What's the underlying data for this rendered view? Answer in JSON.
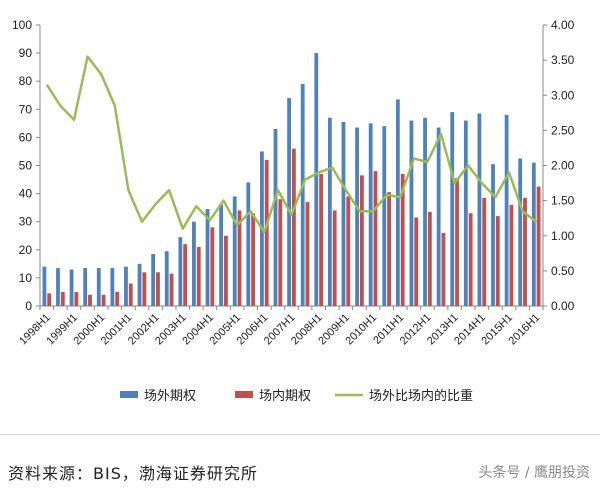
{
  "chart_data": {
    "type": "bar",
    "categories": [
      "1998H1",
      "1998H2",
      "1999H1",
      "1999H2",
      "2000H1",
      "2000H2",
      "2001H1",
      "2001H2",
      "2002H1",
      "2002H2",
      "2003H1",
      "2003H2",
      "2004H1",
      "2004H2",
      "2005H1",
      "2005H2",
      "2006H1",
      "2006H2",
      "2007H1",
      "2007H2",
      "2008H1",
      "2008H2",
      "2009H1",
      "2009H2",
      "2010H1",
      "2010H2",
      "2011H1",
      "2011H2",
      "2012H1",
      "2012H2",
      "2013H1",
      "2013H2",
      "2014H1",
      "2014H2",
      "2015H1",
      "2015H2",
      "2016H1"
    ],
    "tick_labels": [
      "1998H1",
      "1999H1",
      "2000H1",
      "2001H1",
      "2002H1",
      "2003H1",
      "2004H1",
      "2005H1",
      "2006H1",
      "2007H1",
      "2008H1",
      "2009H1",
      "2010H1",
      "2011H1",
      "2012H1",
      "2013H1",
      "2014H1",
      "2015H1",
      "2016H1"
    ],
    "series": [
      {
        "name": "场外期权",
        "type": "bar",
        "axis": "left",
        "color": "#4f81bd",
        "values": [
          14,
          13.5,
          13,
          13.5,
          13.5,
          13.5,
          14,
          15,
          18.5,
          19.5,
          24.5,
          30,
          34.5,
          36,
          39,
          44,
          55,
          63,
          74,
          79,
          90,
          67,
          65.5,
          63.5,
          65,
          64,
          73.5,
          66,
          67,
          63.5,
          69,
          66,
          68.5,
          50.5,
          68,
          52.5,
          51
        ]
      },
      {
        "name": "场内期权",
        "type": "bar",
        "axis": "left",
        "color": "#c0504d",
        "values": [
          4.5,
          5,
          5,
          4,
          4,
          5,
          8,
          12,
          12,
          11.5,
          22,
          21,
          28,
          25,
          34,
          33,
          52,
          38,
          56,
          37,
          47,
          34,
          39,
          46.5,
          48,
          40.5,
          47,
          31.5,
          33.5,
          26,
          45.5,
          33,
          38.5,
          32,
          36,
          38.5,
          42.5
        ]
      },
      {
        "name": "场外比场内的比重",
        "type": "line",
        "axis": "right",
        "color": "#9bbb59",
        "values": [
          3.15,
          2.85,
          2.65,
          3.55,
          3.3,
          2.85,
          1.65,
          1.2,
          1.45,
          1.65,
          1.1,
          1.42,
          1.22,
          1.5,
          1.15,
          1.35,
          1.05,
          1.65,
          1.3,
          1.8,
          1.9,
          1.97,
          1.65,
          1.35,
          1.35,
          1.58,
          1.55,
          2.1,
          2.05,
          2.45,
          1.75,
          2.0,
          1.75,
          1.55,
          1.9,
          1.35,
          1.2
        ]
      }
    ],
    "y_left": {
      "min": 0,
      "max": 100,
      "ticks": [
        "0",
        "10",
        "20",
        "30",
        "40",
        "50",
        "60",
        "70",
        "80",
        "90",
        "100"
      ]
    },
    "y_right": {
      "min": 0,
      "max": 4,
      "ticks": [
        "0.00",
        "0.50",
        "1.00",
        "1.50",
        "2.00",
        "2.50",
        "3.00",
        "3.50",
        "4.00"
      ]
    },
    "grid": false,
    "legend_position": "bottom"
  },
  "footer": {
    "source": "资料来源：BIS，渤海证券研究所",
    "watermark": "头条号 / 鹰朋投资"
  }
}
